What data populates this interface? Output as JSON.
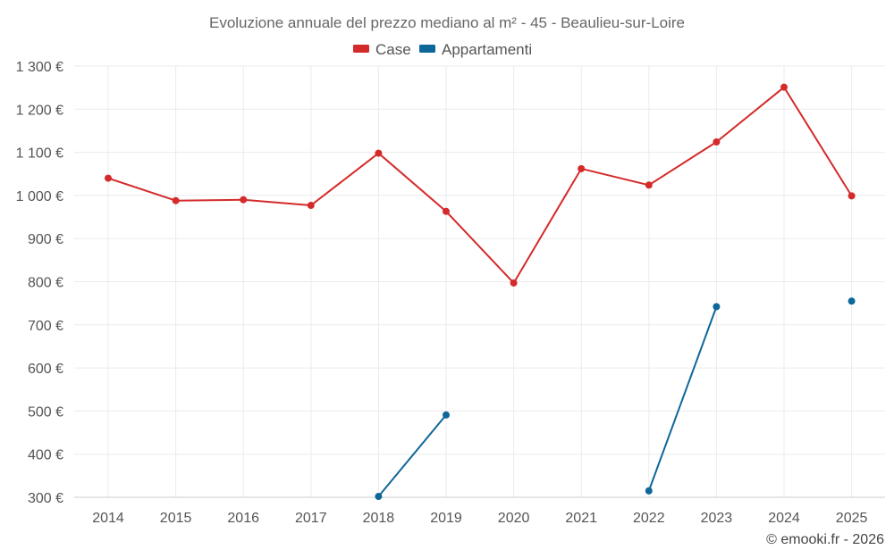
{
  "chart_data": {
    "type": "line",
    "title": "Evoluzione annuale del prezzo mediano al m² - 45 - Beaulieu-sur-Loire",
    "xlabel": "",
    "ylabel": "",
    "categories": [
      "2014",
      "2015",
      "2016",
      "2017",
      "2018",
      "2019",
      "2020",
      "2021",
      "2022",
      "2023",
      "2024",
      "2025"
    ],
    "ylim": [
      300,
      1300
    ],
    "y_ticks": [
      300,
      400,
      500,
      600,
      700,
      800,
      900,
      1000,
      1100,
      1200,
      1300
    ],
    "y_tick_labels": [
      "300 €",
      "400 €",
      "500 €",
      "600 €",
      "700 €",
      "800 €",
      "900 €",
      "1 000 €",
      "1 100 €",
      "1 200 €",
      "1 300 €"
    ],
    "grid": true,
    "legend_position": "top-center",
    "series": [
      {
        "name": "Case",
        "color": "#d42a2a",
        "values": [
          1040,
          988,
          990,
          977,
          1098,
          963,
          797,
          1062,
          1024,
          1124,
          1251,
          999
        ]
      },
      {
        "name": "Appartamenti",
        "color": "#0e6699",
        "values": [
          null,
          null,
          null,
          null,
          302,
          491,
          null,
          null,
          315,
          742,
          null,
          755
        ]
      }
    ]
  },
  "credit": "© emooki.fr - 2026"
}
